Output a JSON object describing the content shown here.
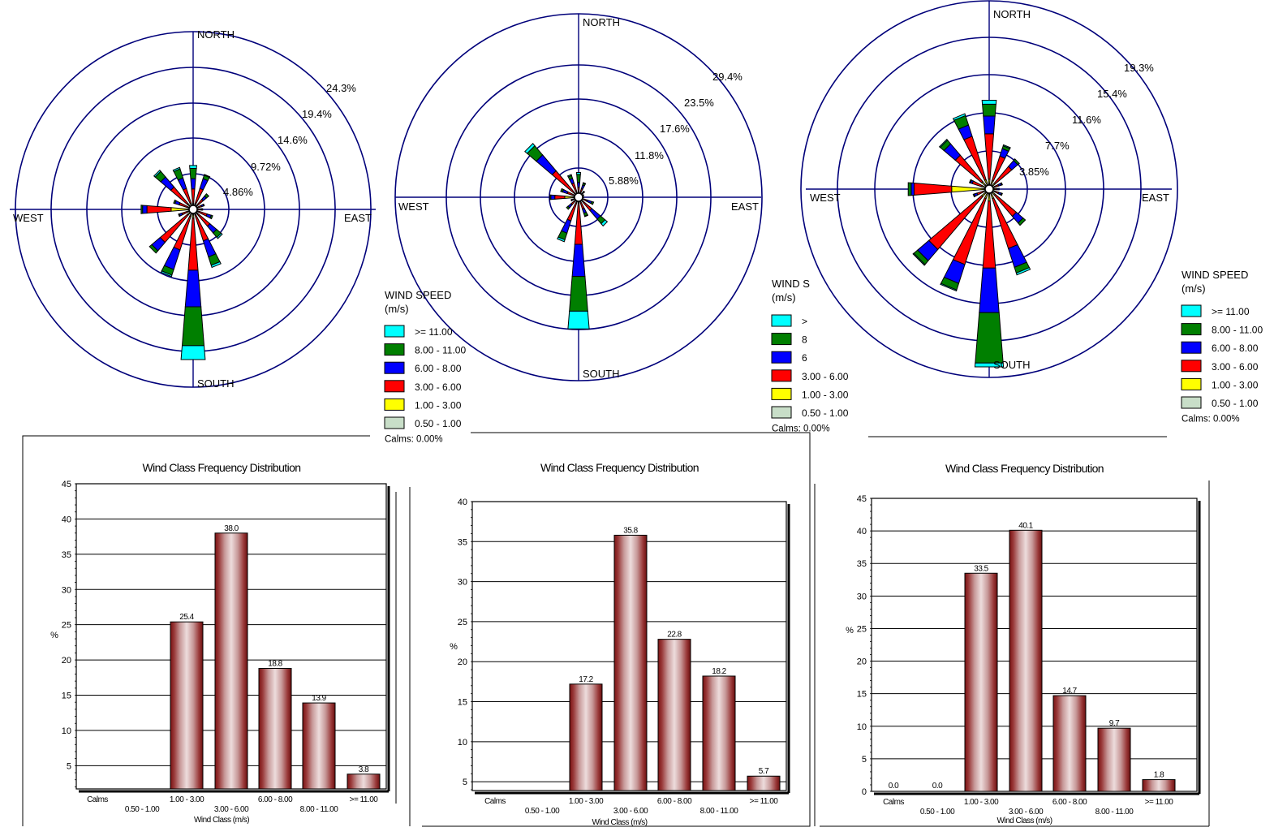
{
  "palette": {
    "ring": "#00007a",
    "bin_colors": [
      "#c8dec8",
      "#ffff00",
      "#ff0000",
      "#0000ff",
      "#007f00",
      "#00ffff"
    ],
    "bar_fill": "#8b1a1a"
  },
  "chart_data": [
    {
      "type": "windrose",
      "directions": [
        "NORTH",
        "EAST",
        "SOUTH",
        "WEST"
      ],
      "rings": [
        "4.86%",
        "9.72%",
        "14.6%",
        "19.4%",
        "24.3%"
      ],
      "ring_values": [
        4.86,
        9.72,
        14.6,
        19.4,
        24.3
      ],
      "legend": {
        "title": "WIND SPEED",
        "unit": "(m/s)",
        "bins": [
          ">= 11.00",
          "8.00 - 11.00",
          "6.00 - 8.00",
          "3.00 - 6.00",
          "1.00 - 3.00",
          "0.50 - 1.00"
        ],
        "calms": "Calms: 0.00%"
      },
      "sectors": [
        {
          "dir": 0,
          "cum": [
            0.3,
            0.8,
            2.8,
            4.2,
            5.6,
            6.0
          ]
        },
        {
          "dir": 22.5,
          "cum": [
            0.3,
            0.8,
            3.0,
            4.4,
            4.9,
            5.0
          ]
        },
        {
          "dir": 45,
          "cum": [
            0.2,
            0.6,
            1.8,
            2.4,
            2.8,
            2.8
          ]
        },
        {
          "dir": 67.5,
          "cum": [
            0.2,
            0.5,
            1.2,
            1.5,
            1.6,
            1.6
          ]
        },
        {
          "dir": 90,
          "cum": [
            0.2,
            0.4,
            1.0,
            1.2,
            1.3,
            1.3
          ]
        },
        {
          "dir": 112.5,
          "cum": [
            0.2,
            0.5,
            2.0,
            2.6,
            2.8,
            2.8
          ]
        },
        {
          "dir": 135,
          "cum": [
            0.3,
            0.8,
            3.0,
            4.2,
            5.0,
            5.2
          ]
        },
        {
          "dir": 157.5,
          "cum": [
            0.3,
            0.8,
            4.5,
            6.8,
            8.0,
            8.3
          ]
        },
        {
          "dir": 180,
          "cum": [
            0.4,
            1.2,
            8.3,
            13.3,
            18.6,
            20.5
          ]
        },
        {
          "dir": 202.5,
          "cum": [
            0.3,
            1.0,
            5.8,
            8.6,
            9.4,
            9.6
          ]
        },
        {
          "dir": 225,
          "cum": [
            0.3,
            1.0,
            5.9,
            7.4,
            7.8,
            7.8
          ]
        },
        {
          "dir": 247.5,
          "cum": [
            0.2,
            0.5,
            1.6,
            2.0,
            2.1,
            2.1
          ]
        },
        {
          "dir": 270,
          "cum": [
            0.3,
            3.0,
            6.3,
            6.9,
            7.1,
            7.1
          ]
        },
        {
          "dir": 292.5,
          "cum": [
            0.2,
            0.5,
            2.0,
            2.6,
            2.8,
            2.8
          ]
        },
        {
          "dir": 315,
          "cum": [
            0.3,
            1.0,
            4.0,
            5.8,
            6.8,
            7.0
          ]
        },
        {
          "dir": 337.5,
          "cum": [
            0.3,
            0.9,
            3.0,
            4.5,
            5.8,
            6.0
          ]
        }
      ]
    },
    {
      "type": "windrose",
      "directions": [
        "NORTH",
        "EAST",
        "SOUTH",
        "WEST"
      ],
      "rings": [
        "5.88%",
        "11.8%",
        "17.6%",
        "23.5%",
        "29.4%"
      ],
      "ring_values": [
        5.88,
        11.8,
        17.6,
        23.5,
        29.4
      ],
      "legend": {
        "title": "WIND S",
        "unit": "(m/s)",
        "bins": [
          ">",
          "8",
          "6",
          "3.00 - 6.00",
          "1.00 - 3.00",
          "0.50 - 1.00"
        ],
        "calms": "Calms: 0.00%"
      },
      "sectors": [
        {
          "dir": 0,
          "cum": [
            0.3,
            0.6,
            2.0,
            3.0,
            4.6,
            5.0
          ]
        },
        {
          "dir": 22.5,
          "cum": [
            0.3,
            0.6,
            1.8,
            2.6,
            3.0,
            3.1
          ]
        },
        {
          "dir": 45,
          "cum": [
            0.2,
            0.5,
            1.0,
            1.4,
            1.6,
            1.6
          ]
        },
        {
          "dir": 67.5,
          "cum": [
            0.2,
            0.4,
            0.8,
            1.0,
            1.1,
            1.1
          ]
        },
        {
          "dir": 90,
          "cum": [
            0.2,
            0.4,
            0.8,
            1.0,
            1.0,
            1.0
          ]
        },
        {
          "dir": 112.5,
          "cum": [
            0.2,
            0.5,
            1.8,
            2.8,
            3.2,
            3.2
          ]
        },
        {
          "dir": 135,
          "cum": [
            0.3,
            0.8,
            3.5,
            5.8,
            7.0,
            7.6
          ]
        },
        {
          "dir": 157.5,
          "cum": [
            0.3,
            0.7,
            2.5,
            3.4,
            4.0,
            4.1
          ]
        },
        {
          "dir": 180,
          "cum": [
            0.4,
            1.2,
            9.5,
            16.0,
            23.0,
            26.6
          ]
        },
        {
          "dir": 202.5,
          "cum": [
            0.3,
            0.9,
            5.0,
            7.6,
            9.0,
            9.4
          ]
        },
        {
          "dir": 225,
          "cum": [
            0.2,
            0.6,
            2.0,
            2.8,
            3.2,
            3.2
          ]
        },
        {
          "dir": 247.5,
          "cum": [
            0.2,
            0.5,
            1.2,
            1.5,
            1.6,
            1.6
          ]
        },
        {
          "dir": 270,
          "cum": [
            0.3,
            2.8,
            4.8,
            5.6,
            5.8,
            5.8
          ]
        },
        {
          "dir": 292.5,
          "cum": [
            0.2,
            0.6,
            2.4,
            3.4,
            3.8,
            3.8
          ]
        },
        {
          "dir": 315,
          "cum": [
            0.3,
            1.0,
            7.0,
            11.2,
            13.6,
            14.2
          ]
        },
        {
          "dir": 337.5,
          "cum": [
            0.3,
            0.8,
            3.0,
            4.0,
            4.6,
            4.8
          ]
        }
      ]
    },
    {
      "type": "windrose",
      "directions": [
        "NORTH",
        "EAST",
        "SOUTH",
        "WEST"
      ],
      "rings": [
        "3.85%",
        "7.7%",
        "11.6%",
        "15.4%",
        "19.3%"
      ],
      "ring_values": [
        3.85,
        7.7,
        11.6,
        15.4,
        19.3
      ],
      "legend": {
        "title": "WIND SPEED",
        "unit": "(m/s)",
        "bins": [
          ">= 11.00",
          "8.00 - 11.00",
          "6.00 - 8.00",
          "3.00 - 6.00",
          "1.00 - 3.00",
          "0.50 - 1.00"
        ],
        "calms": "Calms: 0.00%"
      },
      "sectors": [
        {
          "dir": 0,
          "cum": [
            0.3,
            1.0,
            5.6,
            7.4,
            8.6,
            9.0
          ]
        },
        {
          "dir": 22.5,
          "cum": [
            0.3,
            0.9,
            3.5,
            4.3,
            4.6,
            4.7
          ]
        },
        {
          "dir": 45,
          "cum": [
            0.3,
            0.8,
            3.0,
            3.8,
            4.0,
            4.0
          ]
        },
        {
          "dir": 67.5,
          "cum": [
            0.2,
            0.6,
            1.0,
            1.3,
            1.4,
            1.4
          ]
        },
        {
          "dir": 90,
          "cum": [
            0.2,
            0.5,
            0.8,
            1.0,
            1.0,
            1.0
          ]
        },
        {
          "dir": 112.5,
          "cum": [
            0.2,
            0.6,
            1.0,
            1.3,
            1.4,
            1.4
          ]
        },
        {
          "dir": 135,
          "cum": [
            0.3,
            0.8,
            3.6,
            4.5,
            4.8,
            4.8
          ]
        },
        {
          "dir": 157.5,
          "cum": [
            0.3,
            1.0,
            6.3,
            8.3,
            8.9,
            9.1
          ]
        },
        {
          "dir": 180,
          "cum": [
            0.4,
            1.2,
            8.0,
            12.5,
            17.6,
            18.0
          ]
        },
        {
          "dir": 202.5,
          "cum": [
            0.3,
            1.0,
            8.0,
            10.0,
            10.7,
            10.8
          ]
        },
        {
          "dir": 225,
          "cum": [
            0.3,
            1.0,
            8.0,
            9.5,
            10.0,
            10.1
          ]
        },
        {
          "dir": 247.5,
          "cum": [
            0.2,
            0.6,
            1.3,
            1.6,
            1.7,
            1.7
          ]
        },
        {
          "dir": 270,
          "cum": [
            0.3,
            3.8,
            7.6,
            7.9,
            8.2,
            8.2
          ]
        },
        {
          "dir": 292.5,
          "cum": [
            0.2,
            0.8,
            1.8,
            2.0,
            2.1,
            2.1
          ]
        },
        {
          "dir": 315,
          "cum": [
            0.3,
            1.0,
            4.5,
            6.0,
            6.5,
            6.6
          ]
        },
        {
          "dir": 337.5,
          "cum": [
            0.3,
            1.0,
            5.6,
            6.8,
            7.8,
            8.0
          ]
        }
      ]
    },
    {
      "type": "bar",
      "title": "Wind Class Frequency Distribution",
      "xlabel": "Wind Class (m/s)",
      "ylabel": "%",
      "categories": [
        "Calms",
        "0.50 - 1.00",
        "1.00 - 3.00",
        "3.00 - 6.00",
        "6.00 - 8.00",
        "8.00 - 11.00",
        ">= 11.00"
      ],
      "values": [
        null,
        null,
        25.4,
        38.0,
        18.8,
        13.9,
        3.8
      ],
      "value_labels": [
        "",
        "",
        "25.4",
        "38.0",
        "18.8",
        "13.9",
        "3.8"
      ],
      "yticks": [
        "5",
        "10",
        "15",
        "20",
        "25",
        "30",
        "35",
        "40",
        "45"
      ],
      "ylim": [
        1.7,
        45
      ]
    },
    {
      "type": "bar",
      "title": "Wind Class Frequency Distribution",
      "xlabel": "Wind Class (m/s)",
      "ylabel": "%",
      "categories": [
        "Calms",
        "0.50 - 1.00",
        "1.00 - 3.00",
        "3.00 - 6.00",
        "6.00 - 8.00",
        "8.00 - 11.00",
        ">= 11.00"
      ],
      "values": [
        null,
        null,
        17.2,
        35.8,
        22.8,
        18.2,
        5.7
      ],
      "value_labels": [
        "",
        "",
        "17.2",
        "35.8",
        "22.8",
        "18.2",
        "5.7"
      ],
      "yticks": [
        "5",
        "10",
        "15",
        "20",
        "25",
        "30",
        "35",
        "40"
      ],
      "ylim": [
        3.9,
        40
      ]
    },
    {
      "type": "bar",
      "title": "Wind Class Frequency Distribution",
      "xlabel": "Wind Class (m/s)",
      "ylabel": "%",
      "categories": [
        "Calms",
        "0.50 - 1.00",
        "1.00 - 3.00",
        "3.00 - 6.00",
        "6.00 - 8.00",
        "8.00 - 11.00",
        ">= 11.00"
      ],
      "values": [
        0.0,
        0.0,
        33.5,
        40.1,
        14.7,
        9.7,
        1.8
      ],
      "value_labels": [
        "0.0",
        "0.0",
        "33.5",
        "40.1",
        "14.7",
        "9.7",
        "1.8"
      ],
      "yticks": [
        "0",
        "5",
        "10",
        "15",
        "20",
        "25",
        "30",
        "35",
        "40",
        "45"
      ],
      "ylim": [
        0,
        45
      ]
    }
  ]
}
